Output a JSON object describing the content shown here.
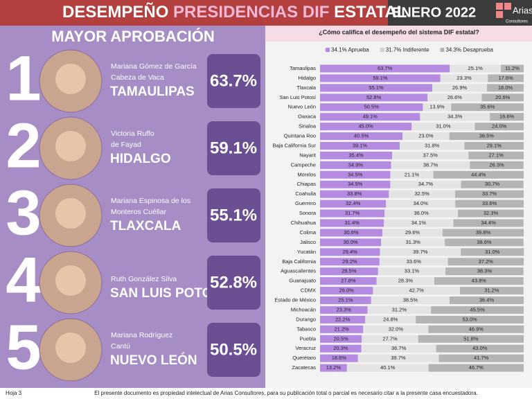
{
  "header": {
    "title_parts": [
      "DESEMPEÑO",
      "PRESIDENCIAS DIF",
      "ESTATAL"
    ],
    "date": "ENERO 2022",
    "logo": [
      "Arias",
      "Consultores"
    ]
  },
  "left_panel": {
    "heading": "MAYOR APROBACIÓN",
    "entries": [
      {
        "rank": "1",
        "name_lines": [
          "Mariana Gómez de García",
          "Cabeza de Vaca"
        ],
        "state": "TAMAULIPAS",
        "percent": "63.7%"
      },
      {
        "rank": "2",
        "name_lines": [
          "Victoria Ruffo",
          "de Fayad"
        ],
        "state": "HIDALGO",
        "percent": "59.1%"
      },
      {
        "rank": "3",
        "name_lines": [
          "Mariana Espinosa de los",
          "Monteros Cuéllar"
        ],
        "state": "TLAXCALA",
        "percent": "55.1%"
      },
      {
        "rank": "4",
        "name_lines": [
          "Ruth González Silva"
        ],
        "state": "SAN LUIS POTOSÍ",
        "percent": "52.8%"
      },
      {
        "rank": "5",
        "name_lines": [
          "Mariana Rodríguez",
          "Cantú"
        ],
        "state": "NUEVO LEÓN",
        "percent": "50.5%"
      }
    ]
  },
  "chart_data": {
    "type": "stacked-bar-horizontal",
    "title": "¿Cómo califica el desempeño del sistema DIF estatal?",
    "xlim": [
      0,
      100
    ],
    "categories": [
      "Tamaulipas",
      "Hidalgo",
      "Tlaxcala",
      "San Luis Potosí",
      "Nuevo León",
      "Oaxaca",
      "Sinaloa",
      "Quintana Roo",
      "Baja California Sur",
      "Nayarit",
      "Campeche",
      "Morelos",
      "Chiapas",
      "Coahuila",
      "Guerrero",
      "Sonora",
      "Chihuahua",
      "Colima",
      "Jalisco",
      "Yucatán",
      "Baja California",
      "Aguascalientes",
      "Guanajuato",
      "CDMX",
      "Estado de México",
      "Michoacán",
      "Durango",
      "Tabasco",
      "Puebla",
      "Veracruz",
      "Querétaro",
      "Zacatecas"
    ],
    "series": [
      {
        "name": "34.1% Aprueba",
        "color": "#b48be0",
        "values": [
          63.7,
          59.1,
          55.1,
          52.8,
          50.5,
          49.1,
          45.0,
          40.5,
          39.1,
          35.4,
          34.9,
          34.5,
          34.5,
          33.8,
          32.4,
          31.7,
          31.4,
          30.6,
          30.0,
          29.4,
          29.2,
          28.5,
          27.8,
          26.0,
          25.1,
          23.3,
          22.2,
          21.2,
          20.5,
          20.3,
          18.6,
          13.2
        ],
        "value_labels": [
          "63.7%",
          "59.1%",
          "55.1%",
          "52.8%",
          "50.5%",
          "49.1%",
          "45.0%",
          "40.5%",
          "39.1%",
          "35.4%",
          "34.9%",
          "34.5%",
          "34.5%",
          "33.8%",
          "32.4%",
          "31.7%",
          "31.4%",
          "30.6%",
          "30.0%",
          "29.4%",
          "29.2%",
          "28.5%",
          "27.8%",
          "26.0%",
          "25.1%",
          "23.3%",
          "22.2%",
          "21.2%",
          "20.5%",
          "20.3%",
          "18.6%",
          "13.2%"
        ]
      },
      {
        "name": "31.7% Indiferente",
        "color": "#e4e4e4",
        "values": [
          25.1,
          23.3,
          26.9,
          26.6,
          13.9,
          34.3,
          31.0,
          23.0,
          31.8,
          37.5,
          38.7,
          21.1,
          34.7,
          32.5,
          34.0,
          36.0,
          34.1,
          29.6,
          31.3,
          39.7,
          33.6,
          33.1,
          28.3,
          42.7,
          38.5,
          31.2,
          24.8,
          32.0,
          27.7,
          36.7,
          39.7,
          40.1
        ],
        "value_labels": [
          "25.1%",
          "23.3%",
          "26.9%",
          "26.6%",
          "13.9%",
          "34.3%",
          "31.0%",
          "23.0%",
          "31.8%",
          "37.5%",
          "38.7%",
          "21.1%",
          "34.7%",
          "32.5%",
          "34.0%",
          "36.0%",
          "34.1%",
          "29.6%",
          "31.3%",
          "39.7%",
          "33.6%",
          "33.1%",
          "28.3%",
          "42.7%",
          "38.5%",
          "31.2%",
          "24.8%",
          "32.0%",
          "27.7%",
          "36.7%",
          "39.7%",
          "40.1%"
        ]
      },
      {
        "name": "34.3% Desaprueba",
        "color": "#b4b4b4",
        "values": [
          11.2,
          17.6,
          18.0,
          20.6,
          35.6,
          16.6,
          24.0,
          36.5,
          29.1,
          27.1,
          26.3,
          44.4,
          30.7,
          33.7,
          33.6,
          32.3,
          34.4,
          39.8,
          38.6,
          31.0,
          37.2,
          38.3,
          43.8,
          31.2,
          36.4,
          45.5,
          53.0,
          46.9,
          51.8,
          43.0,
          41.7,
          46.7
        ],
        "value_labels": [
          "11.2%",
          "17.6%",
          "18.0%",
          "20.6%",
          "35.6%",
          "16.6%",
          "24.0%",
          "36.5%",
          "29.1%",
          "27.1%",
          "26.3%",
          "44.4%",
          "30.7%",
          "33.7%",
          "33.6%",
          "32.3%",
          "34.4%",
          "39.8%",
          "38.6%",
          "31.0%",
          "37.2%",
          "38.3%",
          "43.8%",
          "31.2%",
          "36.4%",
          "45.5%",
          "53.0%",
          "46.9%",
          "51.8%",
          "43.0%",
          "41.7%",
          "46.7%"
        ]
      }
    ]
  },
  "footer": {
    "page": "Hoja 3",
    "note": "El presente documento es propiedad intelectual de Arias Consultores, para su publicación total o parcial es necesario citar a la presente casa encuestadora."
  }
}
